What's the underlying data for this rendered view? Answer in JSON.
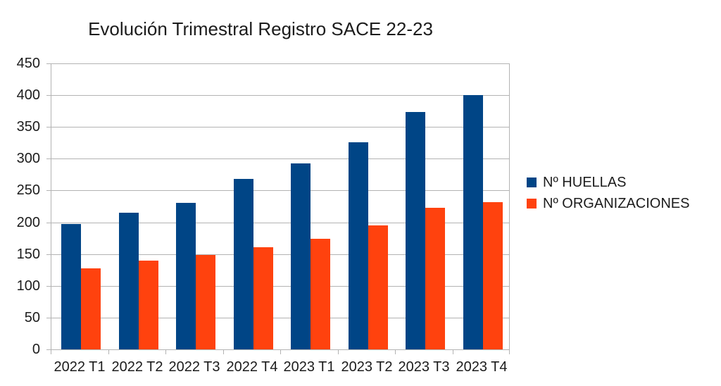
{
  "title": "Evolución Trimestral Registro SACE 22-23",
  "chart_data": {
    "type": "bar",
    "title": "Evolución Trimestral Registro SACE 22-23",
    "categories": [
      "2022 T1",
      "2022 T2",
      "2022 T3",
      "2022 T4",
      "2023 T1",
      "2023 T2",
      "2023 T3",
      "2023 T4"
    ],
    "series": [
      {
        "name": "Nº HUELLAS",
        "color": "#004586",
        "values": [
          197,
          215,
          231,
          268,
          293,
          326,
          374,
          400
        ]
      },
      {
        "name": "Nº ORGANIZACIONES",
        "color": "#ff420e",
        "values": [
          128,
          140,
          149,
          161,
          174,
          195,
          223,
          232
        ]
      }
    ],
    "xlabel": "",
    "ylabel": "",
    "ylim": [
      0,
      450
    ],
    "yticks": [
      0,
      50,
      100,
      150,
      200,
      250,
      300,
      350,
      400,
      450
    ],
    "grid": "horizontal",
    "legend_position": "right"
  },
  "colors": {
    "background": "#ffffff",
    "grid": "#b3b3b3",
    "axis": "#b3b3b3",
    "text": "#1c1c1c",
    "series_blue": "#004586",
    "series_orange": "#ff420e"
  }
}
